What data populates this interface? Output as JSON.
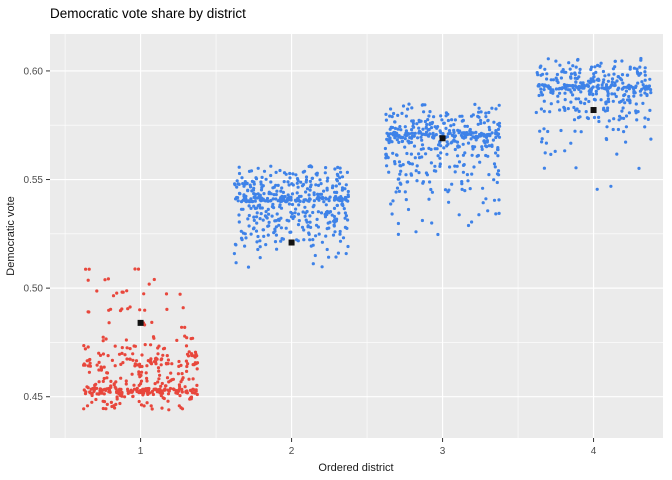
{
  "chart_data": {
    "type": "scatter",
    "title": "Democratic vote share by district",
    "xlabel": "Ordered district",
    "ylabel": "Democratic vote",
    "x_ticks": [
      1,
      2,
      3,
      4
    ],
    "x_tick_labels": [
      "1",
      "2",
      "3",
      "4"
    ],
    "y_ticks": [
      0.45,
      0.5,
      0.55,
      0.6
    ],
    "y_tick_labels": [
      "0.45",
      "0.50",
      "0.55",
      "0.60"
    ],
    "x_minor": [
      0.5,
      1.5,
      2.5,
      3.5
    ],
    "y_minor": [
      0.475,
      0.525,
      0.575
    ],
    "xlim": [
      0.4,
      4.46
    ],
    "ylim": [
      0.431,
      0.617
    ],
    "grid": true,
    "legend": "none",
    "panel_bg": "#EBEBEB",
    "grid_color": "#FFFFFF",
    "tick_label_color": "#4D4D4D",
    "axis_title_color": "#1a1a1a",
    "title_color": "#000000",
    "mean_marker_color": "#111111",
    "clusters": [
      {
        "district": 1,
        "x": 1,
        "color": "#E8473C",
        "x_jitter": 0.38,
        "y_jitter": 0.0013,
        "bands": [
          {
            "y": 0.4445,
            "n": 10
          },
          {
            "y": 0.447,
            "n": 16
          },
          {
            "y": 0.45,
            "n": 22
          },
          {
            "y": 0.4525,
            "n": 120
          },
          {
            "y": 0.455,
            "n": 26
          },
          {
            "y": 0.458,
            "n": 24
          },
          {
            "y": 0.461,
            "n": 18
          },
          {
            "y": 0.464,
            "n": 30
          },
          {
            "y": 0.4665,
            "n": 36
          },
          {
            "y": 0.4695,
            "n": 22
          },
          {
            "y": 0.473,
            "n": 16
          },
          {
            "y": 0.477,
            "n": 11
          },
          {
            "y": 0.483,
            "n": 7
          },
          {
            "y": 0.49,
            "n": 12
          },
          {
            "y": 0.4975,
            "n": 9
          },
          {
            "y": 0.503,
            "n": 5
          },
          {
            "y": 0.509,
            "n": 4
          }
        ]
      },
      {
        "district": 2,
        "x": 2,
        "color": "#3E82E8",
        "x_jitter": 0.38,
        "y_jitter": 0.0013,
        "bands": [
          {
            "y": 0.5105,
            "n": 4
          },
          {
            "y": 0.515,
            "n": 7
          },
          {
            "y": 0.519,
            "n": 11
          },
          {
            "y": 0.522,
            "n": 17
          },
          {
            "y": 0.525,
            "n": 22
          },
          {
            "y": 0.528,
            "n": 26
          },
          {
            "y": 0.531,
            "n": 30
          },
          {
            "y": 0.534,
            "n": 38
          },
          {
            "y": 0.5375,
            "n": 34
          },
          {
            "y": 0.541,
            "n": 120
          },
          {
            "y": 0.544,
            "n": 40
          },
          {
            "y": 0.547,
            "n": 44
          },
          {
            "y": 0.55,
            "n": 30
          },
          {
            "y": 0.553,
            "n": 22
          },
          {
            "y": 0.5555,
            "n": 10
          }
        ]
      },
      {
        "district": 3,
        "x": 3,
        "color": "#3E82E8",
        "x_jitter": 0.38,
        "y_jitter": 0.0013,
        "bands": [
          {
            "y": 0.525,
            "n": 3
          },
          {
            "y": 0.53,
            "n": 5
          },
          {
            "y": 0.535,
            "n": 7
          },
          {
            "y": 0.54,
            "n": 9
          },
          {
            "y": 0.545,
            "n": 13
          },
          {
            "y": 0.549,
            "n": 16
          },
          {
            "y": 0.553,
            "n": 20
          },
          {
            "y": 0.557,
            "n": 25
          },
          {
            "y": 0.561,
            "n": 29
          },
          {
            "y": 0.565,
            "n": 34
          },
          {
            "y": 0.568,
            "n": 40
          },
          {
            "y": 0.5705,
            "n": 120
          },
          {
            "y": 0.5735,
            "n": 40
          },
          {
            "y": 0.5765,
            "n": 36
          },
          {
            "y": 0.58,
            "n": 26
          },
          {
            "y": 0.5835,
            "n": 13
          }
        ]
      },
      {
        "district": 4,
        "x": 4,
        "color": "#3E82E8",
        "x_jitter": 0.38,
        "y_jitter": 0.0013,
        "bands": [
          {
            "y": 0.5465,
            "n": 2
          },
          {
            "y": 0.555,
            "n": 3
          },
          {
            "y": 0.562,
            "n": 5
          },
          {
            "y": 0.568,
            "n": 8
          },
          {
            "y": 0.573,
            "n": 12
          },
          {
            "y": 0.578,
            "n": 18
          },
          {
            "y": 0.582,
            "n": 26
          },
          {
            "y": 0.586,
            "n": 32
          },
          {
            "y": 0.5895,
            "n": 42
          },
          {
            "y": 0.5925,
            "n": 115
          },
          {
            "y": 0.5955,
            "n": 42
          },
          {
            "y": 0.5985,
            "n": 36
          },
          {
            "y": 0.6015,
            "n": 22
          },
          {
            "y": 0.6045,
            "n": 11
          }
        ]
      }
    ],
    "means": [
      {
        "x": 1,
        "y": 0.484
      },
      {
        "x": 2,
        "y": 0.521
      },
      {
        "x": 3,
        "y": 0.569
      },
      {
        "x": 4,
        "y": 0.582
      }
    ]
  }
}
